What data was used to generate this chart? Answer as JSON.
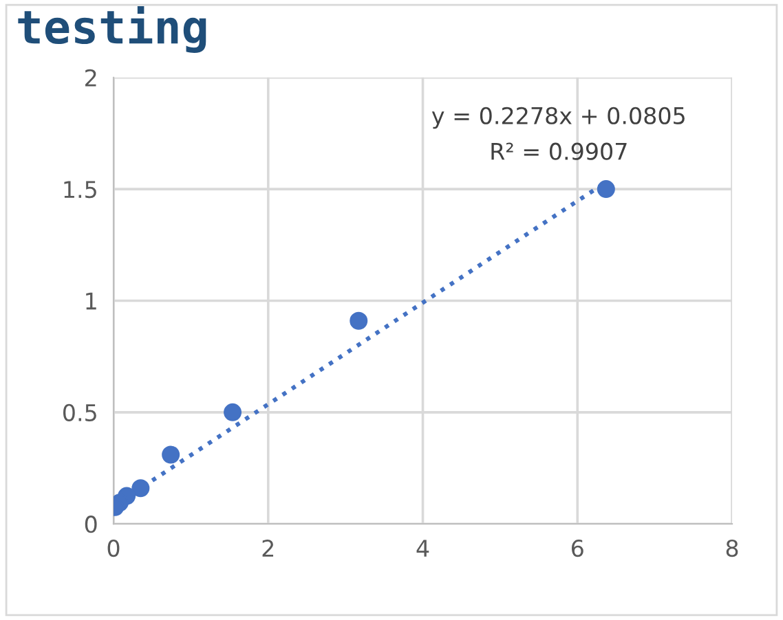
{
  "chart_data": {
    "type": "scatter",
    "title": "testing",
    "series": [
      {
        "type": "scatter",
        "color": "#4472c4",
        "marker": "circle",
        "x": [
          6.37,
          3.17,
          1.54,
          0.74,
          0.35,
          0.17,
          0.08,
          0.02
        ],
        "values": [
          1.5,
          0.91,
          0.5,
          0.31,
          0.16,
          0.125,
          0.095,
          0.075
        ]
      },
      {
        "type": "line",
        "color": "#4472c4",
        "marker": "none",
        "line_style": "dotted",
        "x": [
          0.02,
          6.37
        ],
        "values": [
          0.085,
          1.531
        ]
      }
    ],
    "annotations": [
      "y = 0.2278x + 0.0805",
      "R² = 0.9907"
    ],
    "xlim": [
      0,
      8
    ],
    "xticks": [
      0,
      2,
      4,
      6,
      8
    ],
    "ylim": [
      0,
      2
    ],
    "yticks": [
      0,
      0.5,
      1,
      1.5,
      2
    ],
    "grid": true,
    "legend": false
  }
}
